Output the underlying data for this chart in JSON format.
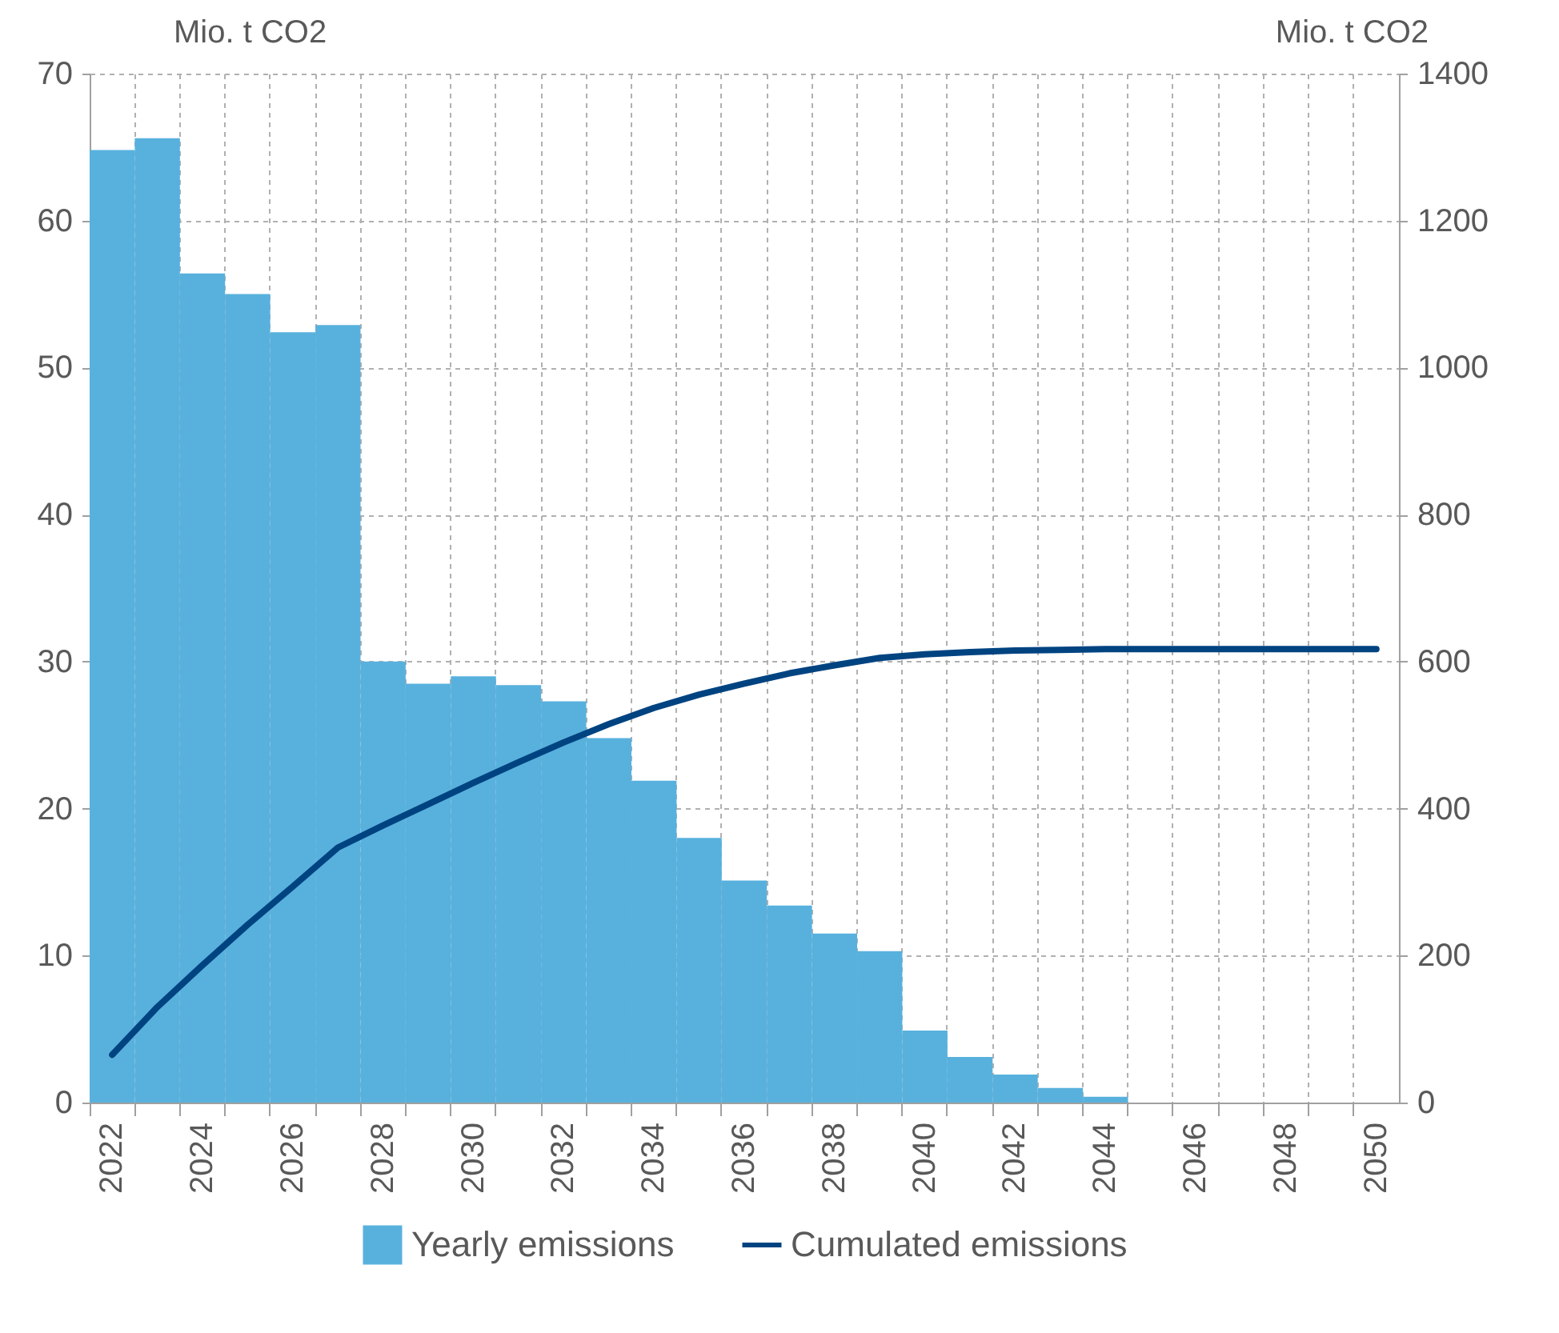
{
  "chart_data": {
    "type": "bar",
    "ylabel": "Mio. t CO2",
    "y2label": "Mio. t CO2",
    "categories": [
      "2022",
      null,
      "2024",
      null,
      "2026",
      null,
      "2028",
      null,
      "2030",
      null,
      "2032",
      null,
      "2034",
      null,
      "2036",
      null,
      "2038",
      null,
      "2040",
      null,
      "2042",
      null,
      "2044",
      null,
      "2046",
      null,
      "2048",
      null,
      "2050"
    ],
    "series": [
      {
        "name": "Yearly emissions",
        "color": "#58b1dd",
        "values": [
          64.8,
          65.6,
          56.4,
          55.0,
          52.4,
          52.9,
          30.0,
          28.5,
          29.0,
          28.4,
          27.3,
          24.8,
          21.9,
          18.0,
          15.1,
          13.4,
          11.5,
          10.3,
          4.9,
          3.1,
          1.9,
          1.0,
          0.4,
          0,
          0,
          0,
          0,
          0,
          0
        ]
      },
      {
        "name": "Cumulated emissions",
        "color": "#004381",
        "type": "line",
        "axis": "y2",
        "values": [
          65,
          130,
          187,
          242,
          294,
          347,
          377,
          406,
          435,
          463,
          490,
          515,
          537,
          555,
          570,
          584,
          595,
          605,
          610,
          613,
          615,
          616,
          617,
          617,
          617,
          617,
          617,
          617,
          617
        ]
      }
    ],
    "ylim": [
      0,
      70
    ],
    "yticks": [
      0,
      10,
      20,
      30,
      40,
      50,
      60,
      70
    ],
    "y2lim": [
      0,
      1400
    ],
    "y2ticks": [
      0,
      200,
      400,
      600,
      800,
      1000,
      1200,
      1400
    ],
    "grid": true,
    "legend": "bottom"
  }
}
